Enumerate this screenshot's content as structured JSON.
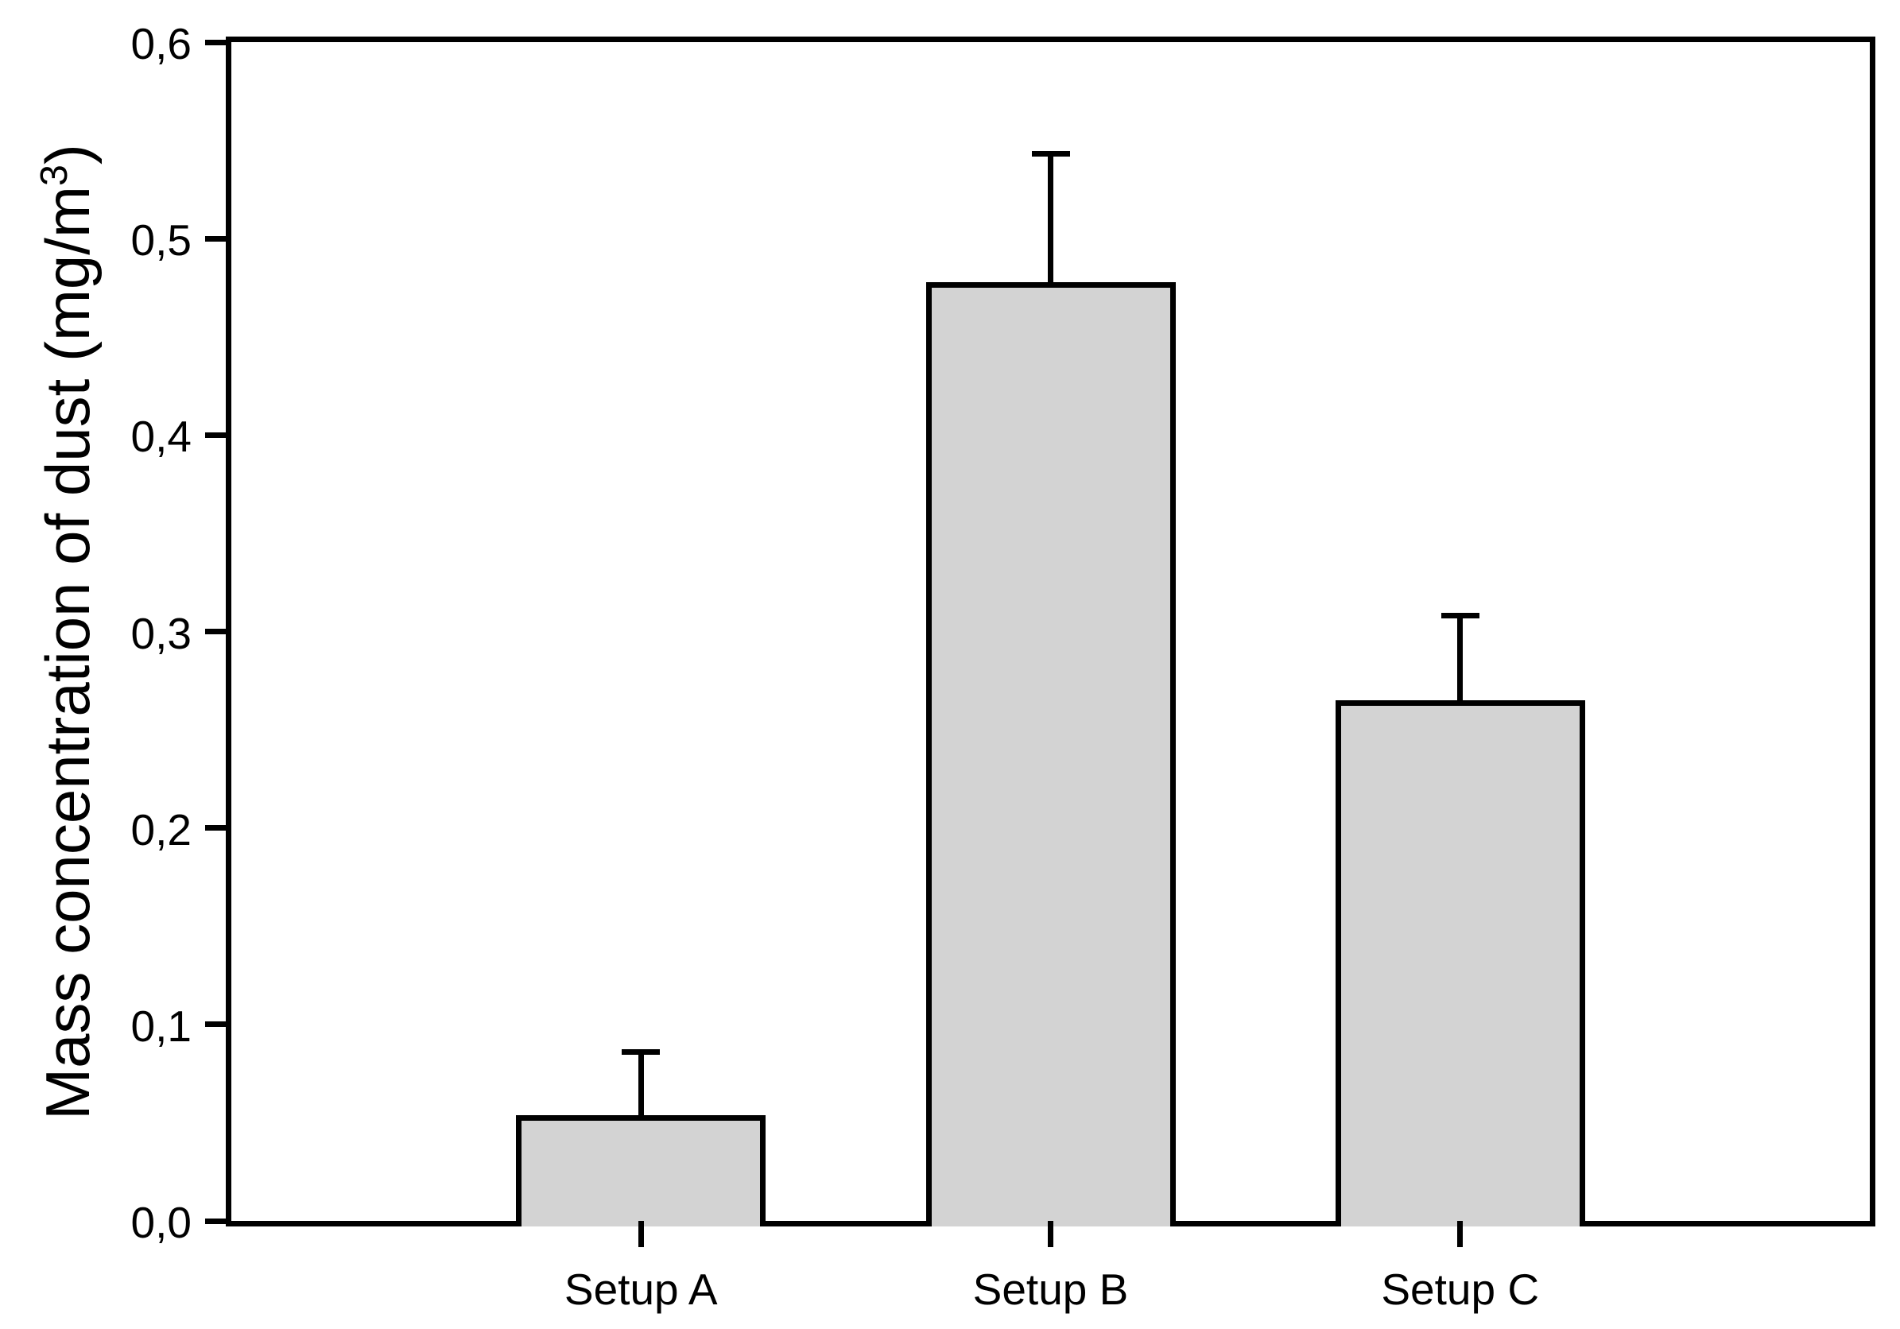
{
  "chart_data": {
    "type": "bar",
    "title": "",
    "categories": [
      "Setup A",
      "Setup B",
      "Setup C"
    ],
    "values": [
      0.054,
      0.478,
      0.265
    ],
    "errors_plus": [
      0.032,
      0.065,
      0.043
    ],
    "error_bar_direction": "up",
    "xlabel": "",
    "ylabel": "Mass concentration of dust (mg/m³)",
    "ylabel_parts": {
      "main": "Mass concentration of dust (mg/m",
      "sup": "3",
      "suffix": ")"
    },
    "ylim": [
      0.0,
      0.6
    ],
    "ytick_values": [
      0.0,
      0.1,
      0.2,
      0.3,
      0.4,
      0.5,
      0.6
    ],
    "ytick_labels": [
      "0,0",
      "0,1",
      "0,2",
      "0,3",
      "0,4",
      "0,5",
      "0,6"
    ],
    "decimal_separator": ",",
    "grid": false,
    "legend": "none",
    "frame": "full-box",
    "bar_fill_color": "#d3d3d3",
    "bar_border_color": "#000000",
    "axis_color": "#000000",
    "background_color": "#ffffff"
  }
}
